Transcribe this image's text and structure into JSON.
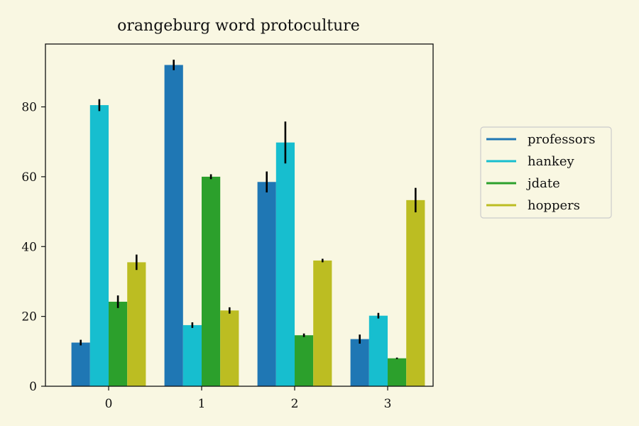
{
  "chart_data": {
    "type": "bar",
    "title": "orangeburg word protoculture",
    "xlabel": "",
    "ylabel": "",
    "categories": [
      "0",
      "1",
      "2",
      "3"
    ],
    "ylim": [
      0,
      98
    ],
    "yticks": [
      0,
      20,
      40,
      60,
      80
    ],
    "grid": false,
    "legend_position": "right",
    "series": [
      {
        "name": "professors",
        "color": "#1f77b4",
        "values": [
          12.5,
          92.0,
          58.5,
          13.5
        ],
        "errors": [
          0.8,
          1.5,
          3.0,
          1.3
        ]
      },
      {
        "name": "hankey",
        "color": "#17becf",
        "values": [
          80.5,
          17.5,
          69.8,
          20.2
        ],
        "errors": [
          1.7,
          0.8,
          6.0,
          0.8
        ]
      },
      {
        "name": "jdate",
        "color": "#2ca02c",
        "values": [
          24.2,
          60.0,
          14.6,
          8.0
        ],
        "errors": [
          1.8,
          0.7,
          0.5,
          0.2
        ]
      },
      {
        "name": "hoppers",
        "color": "#bcbd22",
        "values": [
          35.5,
          21.7,
          36.0,
          53.3
        ],
        "errors": [
          2.2,
          0.9,
          0.5,
          3.5
        ]
      }
    ]
  }
}
